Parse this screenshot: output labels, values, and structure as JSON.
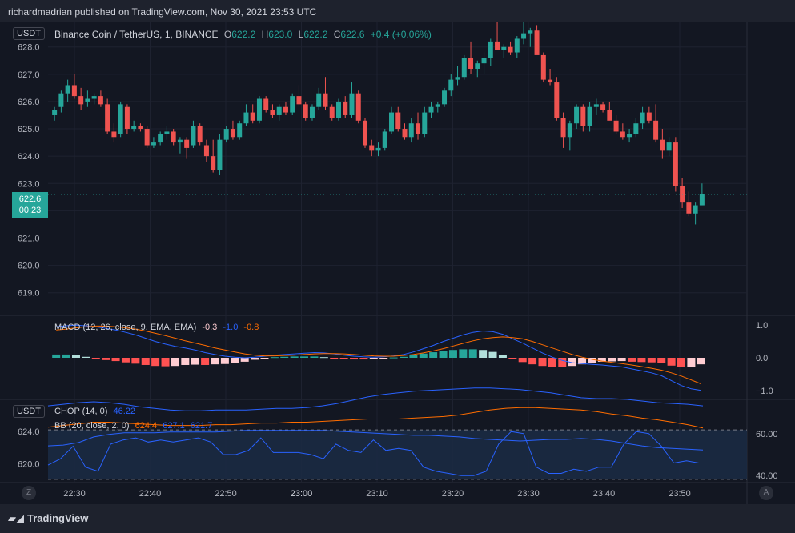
{
  "header": {
    "published": "richardmadrian published on TradingView.com, Nov 30, 2021 23:53 UTC"
  },
  "main_legend": {
    "currency_badge": "USDT",
    "symbol": "Binance Coin / TetherUS, 1, BINANCE",
    "o_label": "O",
    "o_value": "622.2",
    "h_label": "H",
    "h_value": "623.0",
    "l_label": "L",
    "l_value": "622.2",
    "c_label": "C",
    "c_value": "622.6",
    "change": "+0.4 (+0.06%)"
  },
  "price_tag": {
    "price": "622.6",
    "countdown": "00:23"
  },
  "macd_legend": {
    "title": "MACD (12, 26, close, 9, EMA, EMA)",
    "hist": "-0.3",
    "macd": "-1.0",
    "signal": "-0.8"
  },
  "lower_legend": {
    "currency_badge": "USDT",
    "chop_title": "CHOP (14, 0)",
    "chop_value": "46.22",
    "bb_title": "BB (20, close, 2, 0)",
    "bb_basis": "624.4",
    "bb_upper": "627.1",
    "bb_lower": "621.7"
  },
  "footer": {
    "brand": "TradingView",
    "left_button": "Z",
    "right_button": "A"
  },
  "colors": {
    "up": "#26a69a",
    "down": "#ef5350",
    "macd": "#2962ff",
    "signal": "#ff6d00",
    "chop": "#2962ff",
    "bb_basis": "#ff6d00",
    "bb_band": "#2962ff"
  },
  "chart_data": [
    {
      "type": "candlestick",
      "title": "Binance Coin / TetherUS, 1, BINANCE",
      "x_ticks": [
        "22:30",
        "22:40",
        "22:50",
        "23:00",
        "23:10",
        "23:20",
        "23:30",
        "23:40",
        "23:50"
      ],
      "y_ticks": [
        "628.0",
        "627.0",
        "626.0",
        "625.0",
        "624.0",
        "623.0",
        "622.0",
        "621.0",
        "620.0",
        "619.0"
      ],
      "ylim": [
        618.2,
        628.9
      ],
      "candles": [
        [
          625.5,
          625.8,
          625.3,
          625.7
        ],
        [
          625.8,
          626.4,
          625.6,
          626.3
        ],
        [
          626.3,
          626.8,
          626.0,
          626.6
        ],
        [
          626.6,
          627.0,
          626.1,
          626.2
        ],
        [
          626.2,
          626.5,
          625.7,
          625.9
        ],
        [
          626.0,
          626.4,
          625.8,
          626.1
        ],
        [
          626.1,
          626.3,
          625.9,
          626.2
        ],
        [
          626.2,
          626.4,
          625.8,
          625.9
        ],
        [
          625.9,
          626.1,
          624.8,
          624.9
        ],
        [
          624.9,
          625.2,
          624.5,
          624.7
        ],
        [
          624.8,
          626.0,
          624.7,
          625.9
        ],
        [
          625.8,
          625.9,
          624.8,
          625.0
        ],
        [
          625.0,
          625.3,
          624.9,
          625.1
        ],
        [
          625.1,
          625.2,
          624.9,
          625.0
        ],
        [
          625.0,
          625.1,
          624.3,
          624.4
        ],
        [
          624.4,
          624.7,
          624.3,
          624.5
        ],
        [
          624.5,
          624.9,
          624.4,
          624.8
        ],
        [
          624.8,
          625.1,
          624.6,
          624.9
        ],
        [
          624.9,
          625.0,
          624.4,
          624.5
        ],
        [
          624.5,
          624.7,
          624.1,
          624.6
        ],
        [
          624.6,
          624.7,
          623.9,
          624.3
        ],
        [
          624.4,
          625.3,
          624.3,
          625.1
        ],
        [
          625.1,
          625.2,
          624.4,
          624.5
        ],
        [
          624.4,
          624.6,
          623.8,
          624.0
        ],
        [
          624.0,
          624.6,
          623.4,
          623.5
        ],
        [
          623.5,
          624.8,
          623.3,
          624.6
        ],
        [
          624.6,
          625.1,
          624.5,
          625.0
        ],
        [
          625.0,
          625.3,
          624.6,
          624.7
        ],
        [
          624.7,
          625.3,
          624.6,
          625.2
        ],
        [
          625.2,
          625.9,
          625.1,
          625.6
        ],
        [
          625.6,
          625.9,
          625.2,
          625.3
        ],
        [
          625.3,
          626.2,
          625.2,
          626.1
        ],
        [
          626.1,
          626.2,
          625.6,
          625.7
        ],
        [
          625.7,
          625.9,
          625.4,
          625.5
        ],
        [
          625.5,
          625.9,
          625.3,
          625.8
        ],
        [
          625.8,
          626.0,
          625.5,
          625.6
        ],
        [
          625.6,
          626.3,
          625.5,
          626.2
        ],
        [
          626.2,
          626.6,
          625.8,
          625.9
        ],
        [
          625.9,
          626.0,
          625.3,
          625.4
        ],
        [
          625.4,
          625.9,
          625.3,
          625.8
        ],
        [
          625.8,
          626.5,
          625.7,
          626.3
        ],
        [
          626.3,
          626.9,
          625.7,
          625.8
        ],
        [
          625.8,
          625.9,
          625.3,
          625.4
        ],
        [
          625.4,
          626.1,
          625.3,
          626.0
        ],
        [
          626.0,
          626.2,
          625.4,
          625.5
        ],
        [
          625.5,
          626.7,
          625.4,
          626.3
        ],
        [
          626.3,
          626.4,
          625.2,
          625.3
        ],
        [
          625.3,
          625.4,
          624.3,
          624.4
        ],
        [
          624.4,
          624.6,
          624.0,
          624.2
        ],
        [
          624.2,
          624.5,
          624.0,
          624.3
        ],
        [
          624.3,
          625.0,
          624.2,
          624.9
        ],
        [
          624.9,
          625.8,
          624.8,
          625.6
        ],
        [
          625.6,
          625.8,
          624.9,
          625.0
        ],
        [
          625.0,
          625.2,
          624.6,
          624.7
        ],
        [
          624.7,
          625.4,
          624.5,
          625.2
        ],
        [
          625.2,
          625.6,
          624.6,
          624.8
        ],
        [
          624.8,
          625.8,
          624.7,
          625.6
        ],
        [
          625.6,
          626.0,
          625.4,
          625.8
        ],
        [
          625.8,
          626.0,
          625.6,
          625.9
        ],
        [
          625.9,
          626.5,
          625.8,
          626.4
        ],
        [
          626.4,
          627.0,
          626.2,
          626.8
        ],
        [
          626.8,
          627.3,
          626.6,
          626.9
        ],
        [
          626.9,
          627.7,
          626.8,
          627.6
        ],
        [
          627.6,
          628.2,
          627.0,
          627.2
        ],
        [
          627.2,
          627.5,
          626.9,
          627.4
        ],
        [
          627.4,
          627.8,
          627.0,
          627.6
        ],
        [
          627.6,
          628.3,
          627.3,
          628.2
        ],
        [
          628.2,
          629.0,
          627.9,
          627.9
        ],
        [
          627.9,
          628.1,
          627.6,
          628.0
        ],
        [
          628.0,
          628.2,
          627.7,
          627.8
        ],
        [
          627.8,
          628.4,
          627.6,
          628.3
        ],
        [
          628.3,
          628.9,
          628.1,
          628.5
        ],
        [
          628.5,
          628.7,
          628.0,
          628.6
        ],
        [
          628.6,
          628.8,
          627.8,
          627.7
        ],
        [
          627.7,
          627.8,
          626.7,
          626.8
        ],
        [
          626.8,
          627.2,
          626.6,
          626.7
        ],
        [
          626.7,
          626.9,
          625.3,
          625.4
        ],
        [
          625.4,
          625.6,
          624.3,
          624.7
        ],
        [
          624.7,
          625.3,
          624.2,
          625.2
        ],
        [
          625.2,
          625.9,
          625.0,
          625.8
        ],
        [
          625.8,
          625.9,
          624.9,
          625.1
        ],
        [
          625.1,
          626.0,
          624.9,
          625.8
        ],
        [
          625.8,
          626.1,
          625.5,
          625.9
        ],
        [
          625.9,
          626.0,
          625.6,
          625.7
        ],
        [
          625.7,
          626.0,
          625.4,
          625.3
        ],
        [
          625.3,
          625.5,
          624.8,
          624.9
        ],
        [
          624.9,
          625.2,
          624.6,
          624.7
        ],
        [
          624.7,
          625.0,
          624.5,
          624.8
        ],
        [
          624.8,
          625.4,
          624.7,
          625.2
        ],
        [
          625.2,
          625.8,
          625.0,
          625.6
        ],
        [
          625.6,
          625.8,
          625.2,
          625.3
        ],
        [
          625.3,
          625.9,
          624.5,
          624.6
        ],
        [
          624.6,
          625.0,
          623.9,
          624.2
        ],
        [
          624.2,
          624.7,
          624.0,
          624.5
        ],
        [
          624.5,
          624.7,
          622.7,
          622.9
        ],
        [
          622.9,
          623.2,
          622.1,
          622.3
        ],
        [
          622.3,
          622.7,
          621.8,
          621.9
        ],
        [
          621.9,
          622.3,
          621.5,
          622.2
        ],
        [
          622.2,
          623.0,
          622.2,
          622.6
        ]
      ]
    },
    {
      "type": "line",
      "title": "MACD (12, 26, close, 9, EMA, EMA)",
      "y_ticks": [
        "1.0",
        "0.0",
        "−1.0"
      ],
      "ylim": [
        -1.25,
        1.25
      ],
      "series": [
        {
          "name": "MACD",
          "values": [
            0.95,
            0.98,
            1.0,
            0.98,
            0.95,
            0.9,
            0.85,
            0.78,
            0.7,
            0.6,
            0.5,
            0.42,
            0.35,
            0.3,
            0.24,
            0.16,
            0.1,
            0.05,
            0.02,
            0.0,
            0.02,
            0.05,
            0.08,
            0.1,
            0.12,
            0.14,
            0.16,
            0.15,
            0.12,
            0.08,
            0.05,
            0.03,
            0.02,
            0.03,
            0.06,
            0.1,
            0.18,
            0.28,
            0.38,
            0.5,
            0.6,
            0.7,
            0.78,
            0.82,
            0.8,
            0.72,
            0.58,
            0.45,
            0.3,
            0.15,
            0.02,
            -0.08,
            -0.15,
            -0.18,
            -0.2,
            -0.22,
            -0.25,
            -0.28,
            -0.34,
            -0.4,
            -0.46,
            -0.55,
            -0.7,
            -0.85,
            -0.95,
            -1.0
          ]
        },
        {
          "name": "Signal",
          "values": [
            0.85,
            0.88,
            0.92,
            0.95,
            0.97,
            0.97,
            0.95,
            0.92,
            0.88,
            0.82,
            0.75,
            0.68,
            0.6,
            0.52,
            0.45,
            0.38,
            0.3,
            0.24,
            0.18,
            0.12,
            0.08,
            0.06,
            0.06,
            0.07,
            0.08,
            0.1,
            0.12,
            0.13,
            0.13,
            0.12,
            0.1,
            0.08,
            0.06,
            0.05,
            0.05,
            0.07,
            0.1,
            0.15,
            0.21,
            0.28,
            0.36,
            0.44,
            0.52,
            0.58,
            0.62,
            0.64,
            0.62,
            0.58,
            0.5,
            0.4,
            0.3,
            0.2,
            0.1,
            0.02,
            -0.05,
            -0.1,
            -0.14,
            -0.18,
            -0.22,
            -0.27,
            -0.32,
            -0.38,
            -0.46,
            -0.56,
            -0.68,
            -0.8
          ]
        },
        {
          "name": "Histogram",
          "values": [
            0.1,
            0.1,
            0.08,
            0.03,
            -0.02,
            -0.07,
            -0.1,
            -0.14,
            -0.18,
            -0.22,
            -0.25,
            -0.26,
            -0.25,
            -0.22,
            -0.21,
            -0.22,
            -0.2,
            -0.19,
            -0.16,
            -0.12,
            -0.06,
            -0.01,
            0.02,
            0.03,
            0.04,
            0.04,
            0.04,
            0.02,
            -0.01,
            -0.04,
            -0.05,
            -0.05,
            -0.04,
            -0.02,
            0.01,
            0.03,
            0.08,
            0.13,
            0.17,
            0.22,
            0.24,
            0.26,
            0.26,
            0.24,
            0.18,
            0.08,
            -0.04,
            -0.13,
            -0.2,
            -0.25,
            -0.28,
            -0.28,
            -0.25,
            -0.2,
            -0.15,
            -0.12,
            -0.11,
            -0.1,
            -0.12,
            -0.13,
            -0.14,
            -0.17,
            -0.24,
            -0.29,
            -0.27,
            -0.2
          ]
        }
      ]
    },
    {
      "type": "line",
      "title": "CHOP (14, 0)",
      "x_ticks": [
        "22:30",
        "22:40",
        "22:50",
        "23:00",
        "23:10",
        "23:20",
        "23:30",
        "23:40",
        "23:50"
      ],
      "y_ticks_right": [
        "60.00",
        "40.00"
      ],
      "y_ticks_left": [
        "624.0",
        "620.0"
      ],
      "ylim_chop": [
        37,
        76
      ],
      "ylim_price": [
        617.8,
        627.8
      ],
      "series": [
        {
          "name": "CHOP",
          "values": [
            45,
            48,
            54,
            44,
            42,
            55,
            57,
            58,
            56,
            57,
            56,
            57,
            58,
            56,
            50,
            50,
            52,
            58,
            51,
            51,
            51,
            50,
            48,
            55,
            52,
            51,
            57,
            52,
            53,
            52,
            44,
            42,
            41,
            40,
            40,
            42,
            55,
            61,
            60,
            44,
            41,
            41,
            43,
            42,
            44,
            44,
            55,
            61,
            60,
            54,
            46,
            47,
            46
          ]
        },
        {
          "name": "BB basis",
          "values": [
            624.5,
            624.7,
            624.9,
            625.1,
            625.1,
            625.0,
            624.9,
            624.8,
            624.7,
            624.7,
            624.7,
            624.8,
            624.8,
            624.9,
            625.0,
            625.0,
            625.1,
            625.1,
            625.2,
            625.3,
            625.4,
            625.5,
            625.5,
            625.5,
            625.6,
            625.7,
            625.8,
            626.0,
            626.3,
            626.6,
            626.8,
            626.9,
            626.9,
            626.8,
            626.7,
            626.6,
            626.4,
            626.1,
            625.9,
            625.6,
            625.4,
            625.1,
            624.8,
            624.4
          ]
        },
        {
          "name": "BB upper",
          "values": [
            627.1,
            627.3,
            627.5,
            627.6,
            627.5,
            627.3,
            627.0,
            626.8,
            626.6,
            626.5,
            626.5,
            626.6,
            626.6,
            626.6,
            626.7,
            626.8,
            626.8,
            626.9,
            627.1,
            627.4,
            627.8,
            628.2,
            628.5,
            628.7,
            628.9,
            629.0,
            629.1,
            629.2,
            629.3,
            629.3,
            629.2,
            629.1,
            628.9,
            628.7,
            628.4,
            628.1,
            628.0,
            628.0,
            627.9,
            627.7,
            627.5,
            627.4,
            627.3,
            627.1
          ]
        },
        {
          "name": "BB lower",
          "values": [
            622.2,
            622.3,
            622.6,
            623.3,
            623.6,
            623.8,
            623.8,
            623.8,
            623.9,
            623.9,
            623.9,
            623.9,
            624.0,
            624.1,
            624.1,
            624.1,
            624.1,
            624.1,
            624.1,
            624.0,
            623.9,
            623.8,
            623.7,
            623.6,
            623.5,
            623.5,
            623.4,
            623.3,
            623.1,
            623.0,
            622.9,
            622.8,
            622.9,
            623.0,
            623.0,
            623.1,
            623.0,
            622.8,
            622.5,
            622.2,
            622.0,
            621.9,
            621.8,
            621.7
          ]
        }
      ]
    }
  ]
}
